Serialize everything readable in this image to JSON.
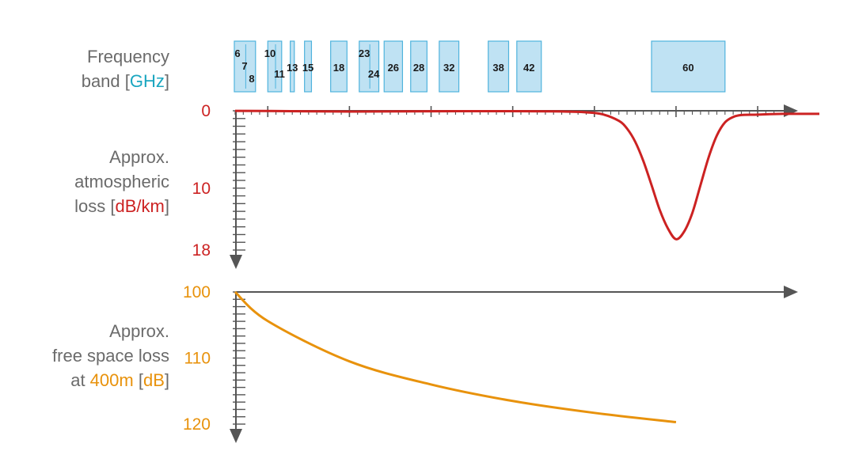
{
  "labels": {
    "freq": {
      "line1": "Frequency",
      "line2_pre": "band [",
      "line2_unit": "GHz",
      "line2_post": "]"
    },
    "atm": {
      "line1": "Approx.",
      "line2": "atmospheric",
      "line3_pre": "loss [",
      "line3_unit": "dB/km",
      "line3_post": "]"
    },
    "fsl": {
      "line1": "Approx.",
      "line2": "free space loss",
      "line3_pre": "at ",
      "line3_dist": "400m",
      "line3_mid": " [",
      "line3_unit": "dB",
      "line3_post": "]"
    }
  },
  "colors": {
    "text_gray": "#6b6b6b",
    "ghz_blue": "#1aa6c0",
    "atm_red": "#cc2222",
    "fsl_orange": "#e8920c",
    "band_fill": "#bfe2f3",
    "band_stroke": "#4fb3dd",
    "axis": "#555555"
  },
  "chart_data": [
    {
      "type": "table",
      "title": "",
      "bands_ghz": [
        {
          "labels": [
            "6",
            "7",
            "8"
          ],
          "start": 5.9,
          "end": 8.5
        },
        {
          "labels": [
            "10",
            "11"
          ],
          "start": 10.0,
          "end": 11.7
        },
        {
          "labels": [
            "13"
          ],
          "start": 12.75,
          "end": 13.25
        },
        {
          "labels": [
            "15"
          ],
          "start": 14.5,
          "end": 15.35
        },
        {
          "labels": [
            "18"
          ],
          "start": 17.7,
          "end": 19.7
        },
        {
          "labels": [
            "23",
            "24"
          ],
          "start": 21.2,
          "end": 23.6
        },
        {
          "labels": [
            "26"
          ],
          "start": 24.25,
          "end": 26.5
        },
        {
          "labels": [
            "28"
          ],
          "start": 27.5,
          "end": 29.5
        },
        {
          "labels": [
            "32"
          ],
          "start": 31.0,
          "end": 33.4
        },
        {
          "labels": [
            "38"
          ],
          "start": 37.0,
          "end": 39.5
        },
        {
          "labels": [
            "42"
          ],
          "start": 40.5,
          "end": 43.5
        },
        {
          "labels": [
            "60"
          ],
          "start": 57.0,
          "end": 66.0
        }
      ],
      "xlim_ghz": [
        6,
        73
      ]
    },
    {
      "type": "line",
      "title": "",
      "xlabel": "",
      "ylabel": "Approx. atmospheric loss [dB/km]",
      "ylim": [
        0,
        18
      ],
      "yticks": [
        0,
        10,
        18
      ],
      "x": [
        6,
        10,
        20,
        30,
        40,
        45,
        47,
        49,
        51,
        53,
        54,
        55,
        56,
        57,
        58,
        59,
        60,
        61,
        62,
        63,
        64,
        65,
        66,
        67,
        68,
        70,
        73
      ],
      "values": [
        0.01,
        0.02,
        0.1,
        0.06,
        0.05,
        0.08,
        0.12,
        0.2,
        0.45,
        1.3,
        2.3,
        4.0,
        6.5,
        9.6,
        12.8,
        15.2,
        16.6,
        15.6,
        13.2,
        9.6,
        6.0,
        3.2,
        1.5,
        0.8,
        0.55,
        0.5,
        0.4
      ]
    },
    {
      "type": "line",
      "title": "",
      "xlabel": "",
      "ylabel": "Approx. free space loss at 400m [dB]",
      "ylim": [
        100,
        120
      ],
      "yticks": [
        100,
        110,
        120
      ],
      "x": [
        6,
        10,
        20,
        30,
        40,
        50,
        60
      ],
      "values": [
        100.0,
        104.4,
        110.5,
        114.0,
        116.5,
        118.3,
        119.7
      ]
    }
  ]
}
